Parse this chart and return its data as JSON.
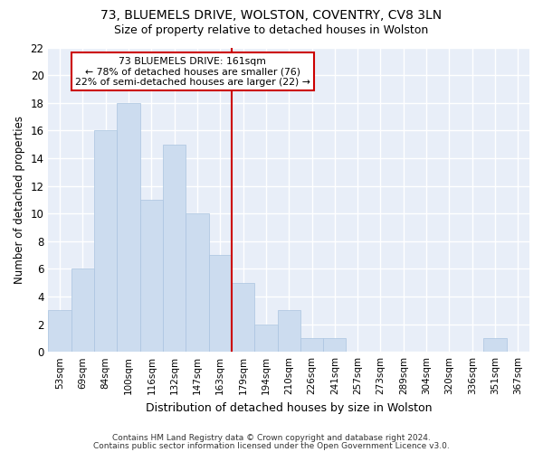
{
  "title1": "73, BLUEMELS DRIVE, WOLSTON, COVENTRY, CV8 3LN",
  "title2": "Size of property relative to detached houses in Wolston",
  "xlabel": "Distribution of detached houses by size in Wolston",
  "ylabel": "Number of detached properties",
  "footer1": "Contains HM Land Registry data © Crown copyright and database right 2024.",
  "footer2": "Contains public sector information licensed under the Open Government Licence v3.0.",
  "categories": [
    "53sqm",
    "69sqm",
    "84sqm",
    "100sqm",
    "116sqm",
    "132sqm",
    "147sqm",
    "163sqm",
    "179sqm",
    "194sqm",
    "210sqm",
    "226sqm",
    "241sqm",
    "257sqm",
    "273sqm",
    "289sqm",
    "304sqm",
    "320sqm",
    "336sqm",
    "351sqm",
    "367sqm"
  ],
  "values": [
    3,
    6,
    16,
    18,
    11,
    15,
    10,
    7,
    5,
    2,
    3,
    1,
    1,
    0,
    0,
    0,
    0,
    0,
    0,
    1,
    0
  ],
  "bar_color": "#ccdcef",
  "bar_edge_color": "#aac4e0",
  "background_color": "#ffffff",
  "plot_bg_color": "#e8eef8",
  "grid_color": "#ffffff",
  "annotation_line1": "73 BLUEMELS DRIVE: 161sqm",
  "annotation_line2": "← 78% of detached houses are smaller (76)",
  "annotation_line3": "22% of semi-detached houses are larger (22) →",
  "annotation_box_color": "#ffffff",
  "annotation_box_edge_color": "#cc0000",
  "vline_color": "#cc0000",
  "vline_x_index": 7,
  "ylim": [
    0,
    22
  ],
  "yticks": [
    0,
    2,
    4,
    6,
    8,
    10,
    12,
    14,
    16,
    18,
    20,
    22
  ]
}
